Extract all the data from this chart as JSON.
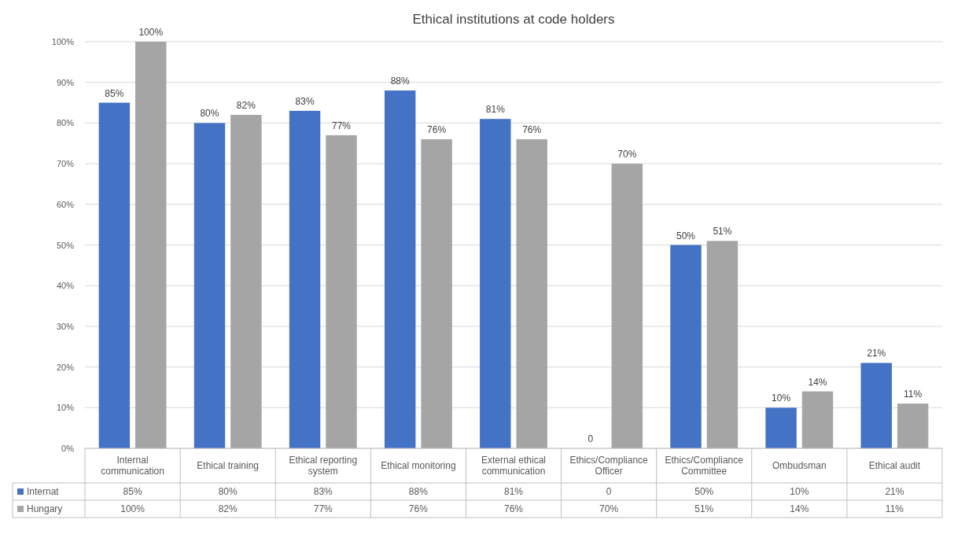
{
  "chart_data": {
    "type": "bar",
    "title": "Ethical institutions at code holders",
    "categories": [
      "Internal communication",
      "Ethical training",
      "Ethical reporting system",
      "Ethical monitoring",
      "External ethical communication",
      "Ethics/Compliance Officer",
      "Ethics/Compliance Committee",
      "Ombudsman",
      "Ethical audit"
    ],
    "series": [
      {
        "name": "Internat",
        "color": "#4472c4",
        "values": [
          85,
          80,
          83,
          88,
          81,
          0,
          50,
          10,
          21
        ],
        "value_labels": [
          "85%",
          "80%",
          "83%",
          "88%",
          "81%",
          "0",
          "50%",
          "10%",
          "21%"
        ]
      },
      {
        "name": "Hungary",
        "color": "#a5a5a5",
        "values": [
          100,
          82,
          77,
          76,
          76,
          70,
          51,
          14,
          11
        ],
        "value_labels": [
          "100%",
          "82%",
          "77%",
          "76%",
          "76%",
          "70%",
          "51%",
          "14%",
          "11%"
        ]
      }
    ],
    "ylim": [
      0,
      100
    ],
    "yticks": [
      {
        "value": 0,
        "label": "0%"
      },
      {
        "value": 10,
        "label": "10%"
      },
      {
        "value": 20,
        "label": "20%"
      },
      {
        "value": 30,
        "label": "30%"
      },
      {
        "value": 40,
        "label": "40%"
      },
      {
        "value": 50,
        "label": "50%"
      },
      {
        "value": 60,
        "label": "60%"
      },
      {
        "value": 70,
        "label": "70%"
      },
      {
        "value": 80,
        "label": "80%"
      },
      {
        "value": 90,
        "label": "90%"
      },
      {
        "value": 100,
        "label": "100%"
      }
    ],
    "grid": "y",
    "legend": "bottom"
  }
}
